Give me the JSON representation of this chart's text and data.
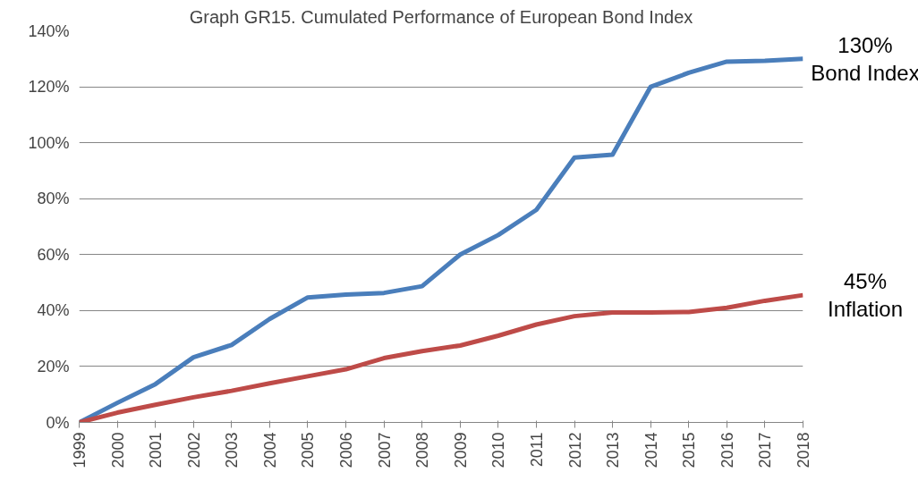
{
  "chart_data": {
    "type": "line",
    "title": "Graph GR15. Cumulated Performance of European Bond Index",
    "x": [
      1999,
      2000,
      2001,
      2002,
      2003,
      2004,
      2005,
      2006,
      2007,
      2008,
      2009,
      2010,
      2011,
      2012,
      2013,
      2014,
      2015,
      2016,
      2017,
      2018
    ],
    "xlim": [
      1999,
      2018
    ],
    "xticks": [
      1999,
      2000,
      2001,
      2002,
      2003,
      2004,
      2005,
      2006,
      2007,
      2008,
      2009,
      2010,
      2011,
      2012,
      2013,
      2014,
      2015,
      2016,
      2017,
      2018
    ],
    "ylim": [
      0,
      140
    ],
    "yticks": [
      {
        "value": 0,
        "label": "0%"
      },
      {
        "value": 20,
        "label": "20%"
      },
      {
        "value": 40,
        "label": "40%"
      },
      {
        "value": 60,
        "label": "60%"
      },
      {
        "value": 80,
        "label": "80%"
      },
      {
        "value": 100,
        "label": "100%"
      },
      {
        "value": 120,
        "label": "120%"
      },
      {
        "value": 140,
        "label": "140%"
      }
    ],
    "grid": "y",
    "legend": false,
    "marker": "none",
    "line_style": "solid",
    "series": [
      {
        "name": "Bond Index",
        "color": "#4a7ebb",
        "values": [
          0,
          7,
          13.7,
          23.3,
          27.7,
          37,
          44.7,
          45.7,
          46.3,
          48.7,
          60,
          67,
          76,
          94.7,
          95.7,
          120,
          125,
          129,
          129.3,
          130
        ],
        "value_labels": [
          null,
          null,
          null,
          null,
          null,
          null,
          null,
          null,
          null,
          null,
          null,
          null,
          null,
          null,
          null,
          null,
          null,
          null,
          null,
          "130%"
        ]
      },
      {
        "name": "Inflation",
        "color": "#be4b48",
        "values": [
          0,
          3.5,
          6.3,
          9,
          11.3,
          14,
          16.5,
          19,
          23,
          25.5,
          27.5,
          31,
          35,
          38,
          39.3,
          39.3,
          39.5,
          41,
          43.5,
          45.5
        ],
        "value_labels": [
          null,
          null,
          null,
          null,
          null,
          null,
          null,
          null,
          null,
          null,
          null,
          null,
          null,
          null,
          null,
          null,
          null,
          null,
          null,
          "45%"
        ]
      }
    ]
  }
}
